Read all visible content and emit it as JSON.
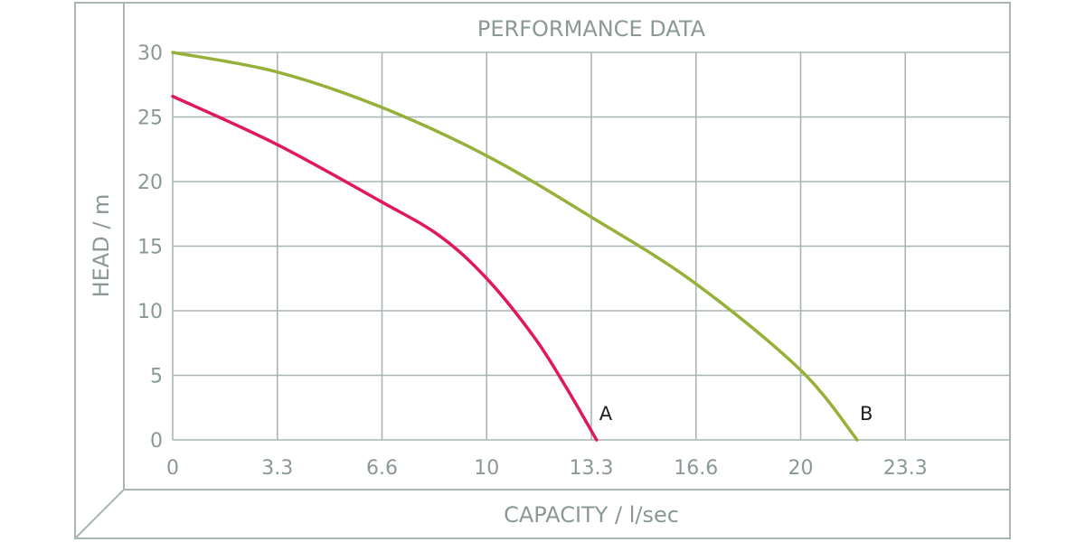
{
  "chart_data": {
    "type": "line",
    "title": "PERFORMANCE DATA",
    "xlabel": "CAPACITY / l/sec",
    "ylabel": "HEAD / m",
    "xlim": [
      0,
      26.6
    ],
    "ylim": [
      0,
      30
    ],
    "x_ticks": [
      "0",
      "3.3",
      "6.6",
      "10",
      "13.3",
      "16.6",
      "20",
      "23.3"
    ],
    "y_ticks": [
      "0",
      "5",
      "10",
      "15",
      "20",
      "25",
      "30"
    ],
    "grid": true,
    "legend": "inline labels at curve ends",
    "series": [
      {
        "name": "A",
        "color": "#e0185c",
        "x": [
          0,
          3.3,
          6.6,
          8.5,
          10,
          11.5,
          12.5,
          13.5
        ],
        "y": [
          26.6,
          22.9,
          18.5,
          15.8,
          12.5,
          8.0,
          4.2,
          0
        ]
      },
      {
        "name": "B",
        "color": "#97b03a",
        "x": [
          0,
          3.3,
          6.6,
          10,
          13.3,
          16.6,
          20,
          21.8
        ],
        "y": [
          30,
          28.5,
          25.8,
          22,
          17.3,
          12.2,
          5.4,
          0
        ]
      }
    ]
  }
}
